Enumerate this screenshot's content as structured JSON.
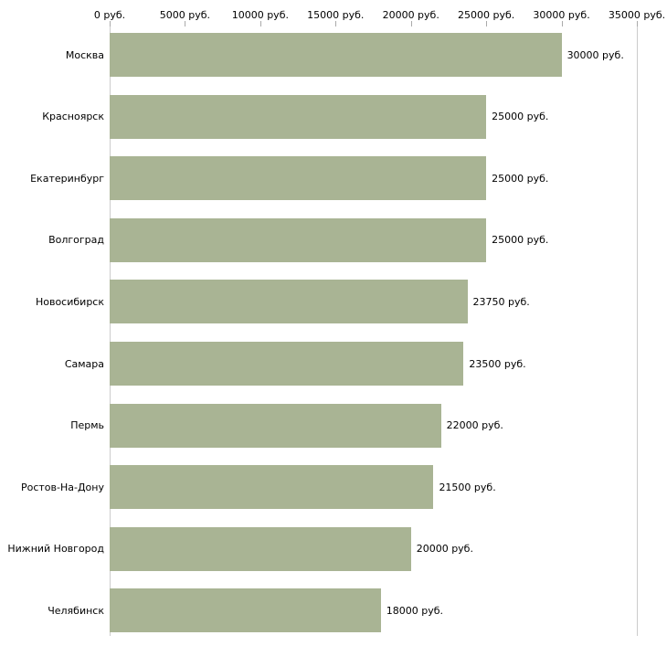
{
  "chart_data": {
    "type": "bar",
    "orientation": "horizontal",
    "title": "",
    "xlabel": "",
    "ylabel": "",
    "xlim": [
      0,
      35000
    ],
    "grid": false,
    "legend": "none",
    "categories": [
      "Москва",
      "Красноярск",
      "Екатеринбург",
      "Волгоград",
      "Новосибирск",
      "Самара",
      "Пермь",
      "Ростов-На-Дону",
      "Нижний Новгород",
      "Челябинск"
    ],
    "values": [
      30000,
      25000,
      25000,
      25000,
      23750,
      23500,
      22000,
      21500,
      20000,
      18000
    ],
    "value_labels": [
      "30000 руб.",
      "25000 руб.",
      "25000 руб.",
      "25000 руб.",
      "23750 руб.",
      "23500 руб.",
      "22000 руб.",
      "21500 руб.",
      "20000 руб.",
      "18000 руб."
    ],
    "x_tick_values": [
      0,
      5000,
      10000,
      15000,
      20000,
      25000,
      30000,
      35000
    ],
    "x_ticks": [
      "0 руб.",
      "5000 руб.",
      "10000 руб.",
      "15000 руб.",
      "20000 руб.",
      "25000 руб.",
      "30000 руб.",
      "35000 руб."
    ],
    "bar_color": "#a9b494",
    "axis_line_color": "#cccccc",
    "tick_mark_color": "#aaaaaa",
    "text_color": "#000000"
  }
}
